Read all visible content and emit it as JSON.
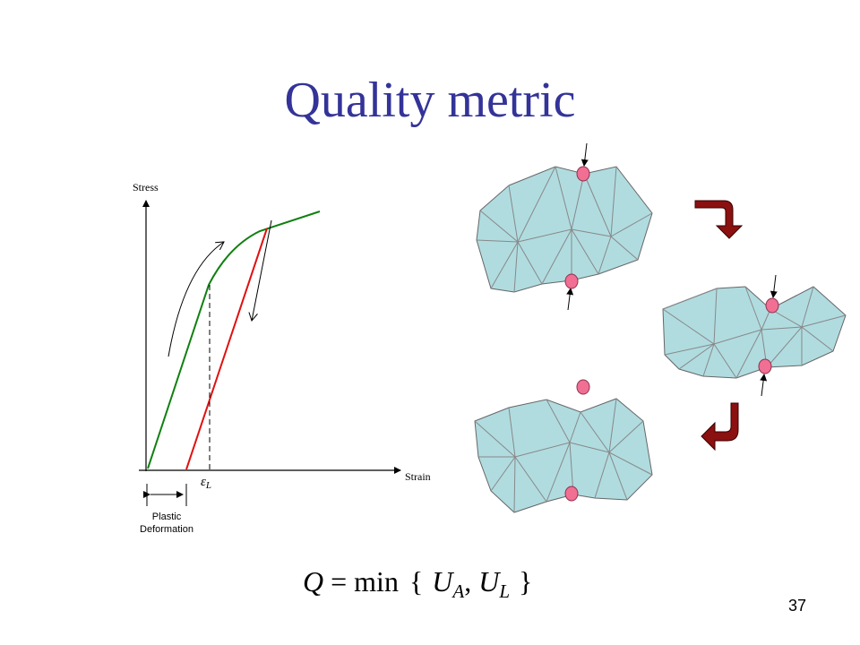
{
  "slide": {
    "title": "Quality metric",
    "graph": {
      "y_axis_label": "Stress",
      "x_axis_label": "Strain",
      "epsilon": {
        "symbol": "ε",
        "subscript": "L"
      },
      "bracket_label": [
        "Plastic",
        "Deformation"
      ]
    },
    "formula": {
      "q": "Q",
      "equals": "=",
      "func": "min",
      "open": "{",
      "u1": "U",
      "sub1": "A",
      "comma": ",",
      "u2": "U",
      "sub2": "L",
      "close": "}"
    },
    "page_number": "37"
  }
}
